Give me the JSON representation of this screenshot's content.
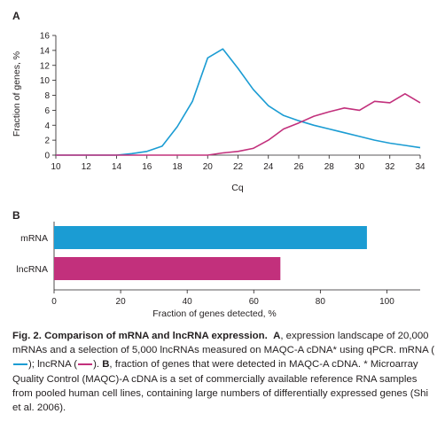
{
  "chart_data": [
    {
      "panel": "A",
      "type": "line",
      "xlabel": "Cq",
      "ylabel": "Fraction of genes, %",
      "xlim": [
        10,
        34
      ],
      "ylim": [
        0,
        16
      ],
      "x_ticks": [
        "10",
        "12",
        "14",
        "16",
        "18",
        "20",
        "22",
        "24",
        "26",
        "28",
        "30",
        "32",
        "34"
      ],
      "y_ticks": [
        "0",
        "2",
        "4",
        "6",
        "8",
        "10",
        "12",
        "14",
        "16"
      ],
      "grid": false,
      "series": [
        {
          "color": "#1b9cd3",
          "x": [
            10,
            11,
            12,
            13,
            14,
            15,
            16,
            17,
            18,
            19,
            20,
            21,
            22,
            23,
            24,
            25,
            26,
            27,
            28,
            29,
            30,
            31,
            32,
            33,
            34
          ],
          "y": [
            0,
            0,
            0,
            0,
            0,
            0.2,
            0.5,
            1.2,
            3.8,
            7.2,
            13,
            14.2,
            11.6,
            8.8,
            6.6,
            5.3,
            4.6,
            4.0,
            3.5,
            3.0,
            2.5,
            2.0,
            1.6,
            1.3,
            1.0
          ]
        },
        {
          "color": "#c2307c",
          "x": [
            10,
            11,
            12,
            13,
            14,
            15,
            16,
            17,
            18,
            19,
            20,
            21,
            22,
            23,
            24,
            25,
            26,
            27,
            28,
            29,
            30,
            31,
            32,
            33,
            34
          ],
          "y": [
            0,
            0,
            0,
            0,
            0,
            0,
            0,
            0,
            0,
            0,
            0,
            0.3,
            0.5,
            0.9,
            2.0,
            3.5,
            4.3,
            5.2,
            5.8,
            6.3,
            6.0,
            7.2,
            7.0,
            8.2,
            7.0
          ]
        }
      ]
    },
    {
      "panel": "B",
      "type": "bar",
      "orientation": "horizontal",
      "categories": [
        "mRNA",
        "lncRNA"
      ],
      "values": [
        94,
        68
      ],
      "colors": [
        "#1b9cd3",
        "#c2307c"
      ],
      "xlabel": "Fraction of genes detected, %",
      "xlim": [
        0,
        110
      ],
      "x_ticks": [
        "0",
        "20",
        "40",
        "60",
        "80",
        "100"
      ]
    }
  ],
  "caption": {
    "title": "Fig. 2. Comparison of mRNA and lncRNA expression.",
    "label_a": "A",
    "part1": ", expression landscape of 20,000 mRNAs and a selection of 5,000 lncRNAs measured on MAQC-A cDNA* using qPCR. mRNA (",
    "part2": "); lncRNA (",
    "part3": "). ",
    "label_b": "B",
    "part4": ", fraction of genes that were detected in MAQC-A cDNA. * Microarray Quality Control (MAQC)-A cDNA is a set of commercially available reference RNA samples from pooled human cell lines, containing large numbers of differentially expressed genes (Shi et al. 2006)."
  },
  "colors": {
    "mrna": "#1b9cd3",
    "lncrna": "#c2307c",
    "axis": "#231f20"
  }
}
